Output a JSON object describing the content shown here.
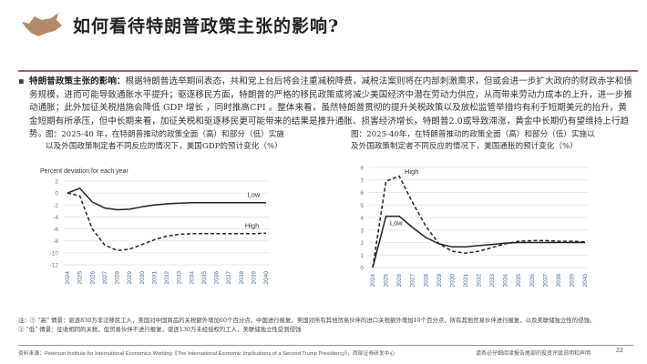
{
  "header": {
    "title": "如何看待特朗普政策主张的影响?",
    "logo": "bull-logo",
    "accent": "#a06468"
  },
  "bullet": {
    "lead": "特朗普政策主张的影响：",
    "text": "根据特朗普选举期间表态，共和党上台后将会注重减税降费，减税法案则将在内部刺激需求，但或会进一步扩大政府的财政赤字和债务规模，进而可能导致通胀水平提升；驱逐移民方面，特朗普的严格的移民政策或将减少美国经济中潜在劳动力供应，从而带来劳动力成本的上升，进一步推动通胀；此外加征关税措施会降低 GDP 增长 ，同时推高CPI 。整体来看，虽然特朗普贯彻的提升关税政策以及放松监管举措均有利于短期美元的抬升，黄金短期有所承压，但中长期来看，加征关税和驱逐移民更可能带来的结果是推升通胀、损害经济增长，特朗普2.0或导致滞涨，黄金中长期仍有望维持上行趋势。"
  },
  "chart_data": [
    {
      "type": "line",
      "caption": "图：2025-40 年，在特朗普推动的政策全面（高）和部分（低）实施以及外国政策制定者不同反应的情况下，美国GDP的预计变化（%）",
      "ylabel": "Percent deviation for each year",
      "ylim": [
        -12,
        2
      ],
      "yticks": [
        2,
        0,
        -2,
        -4,
        -6,
        -8,
        -10,
        -12
      ],
      "grid": true,
      "categories": [
        "2024",
        "2025",
        "2026",
        "2027",
        "2028",
        "2029",
        "2030",
        "2031",
        "2032",
        "2033",
        "2034",
        "2035",
        "2036",
        "2037",
        "2038",
        "2039",
        "2040"
      ],
      "series": [
        {
          "name": "Low",
          "style": "solid",
          "values": [
            0,
            0.8,
            -1.5,
            -2.5,
            -2.8,
            -2.7,
            -2.3,
            -2.0,
            -1.8,
            -1.7,
            -1.6,
            -1.6,
            -1.6,
            -1.6,
            -1.6,
            -1.6,
            -1.6
          ]
        },
        {
          "name": "High",
          "style": "dashed",
          "values": [
            0,
            -0.5,
            -6,
            -8.7,
            -9.6,
            -9.4,
            -8.6,
            -7.8,
            -7.2,
            -6.9,
            -6.8,
            -6.8,
            -6.8,
            -6.8,
            -6.8,
            -6.8,
            -6.7
          ]
        }
      ]
    },
    {
      "type": "line",
      "caption": "图：2025-40年，在特朗普推动的政策全面（高）和部分（低）实施以及外国政策制定者不同反应的情况下，美国通胀的预计变化（%）",
      "ylabel": "",
      "ylim": [
        0,
        8
      ],
      "yticks": [
        8,
        7,
        6,
        5,
        4,
        3,
        2,
        1,
        0
      ],
      "grid": true,
      "categories": [
        "2024",
        "2025",
        "2026",
        "2027",
        "2028",
        "2029",
        "2030",
        "2031",
        "2032",
        "2033",
        "2034",
        "2035",
        "2036",
        "2037",
        "2038",
        "2039",
        "2040"
      ],
      "series": [
        {
          "name": "High",
          "style": "dashed",
          "values": [
            0,
            6.9,
            7.3,
            5.2,
            3.3,
            1.9,
            1.3,
            1.15,
            1.3,
            1.6,
            1.9,
            2.1,
            2.15,
            2.15,
            2.1,
            2.1,
            2.05
          ]
        },
        {
          "name": "Low",
          "style": "solid",
          "values": [
            0,
            4.1,
            4.1,
            3.2,
            2.4,
            1.9,
            1.65,
            1.65,
            1.75,
            1.85,
            1.95,
            2.0,
            2.0,
            2.0,
            2.0,
            2.0,
            2.0
          ]
        }
      ]
    }
  ],
  "notes": {
    "line1": "注：① “高” 情景：驱逐830万非法移民工人，美国对中国商品的关税额外增加60个百分点，中国进行报复，美国对所有其他贸易伙伴的进口关税额外增加10个百分点，所有其他贸易伙伴进行报复，以及美联储独立性的侵蚀。",
    "line2": "② “低” 情景：征收相同的关税，但贸易伙伴不进行报复，驱逐130万未经授权的工人，美联储独立性受到侵蚀"
  },
  "footer": {
    "source": "资料来源：Peterson Institute for International Economics Working《The International Economic Implications of a Second Trump Presidency》，西部证券研发中心",
    "disclaimer": "请务必仔细阅读报告尾部的投资评级说明和声明",
    "page": "22"
  }
}
